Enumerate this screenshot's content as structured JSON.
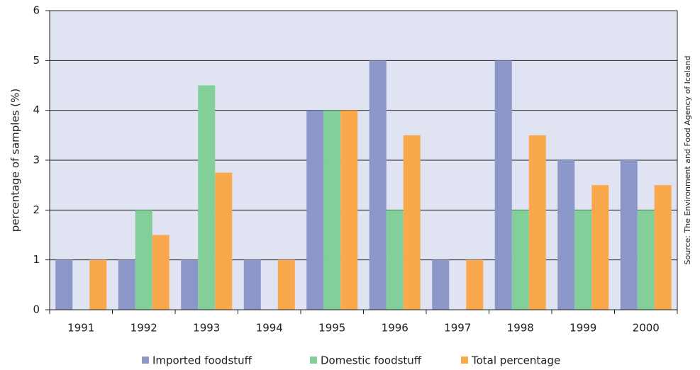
{
  "chart_data": {
    "type": "bar",
    "y_label": "percentage of samples (%)",
    "annotation": "Source: The Environment and Food Agency of Iceland",
    "categories": [
      "1991",
      "1992",
      "1993",
      "1994",
      "1995",
      "1996",
      "1997",
      "1998",
      "1999",
      "2000"
    ],
    "series": [
      {
        "name": "Imported foodstuff",
        "color": "#8b96c9",
        "values": [
          1,
          1,
          1,
          1,
          4,
          5,
          1,
          5,
          3,
          3
        ]
      },
      {
        "name": "Domestic foodstuff",
        "color": "#82cf99",
        "values": [
          0,
          2,
          4.5,
          0,
          4,
          2,
          0,
          2,
          2,
          2
        ]
      },
      {
        "name": "Total percentage",
        "color": "#f9a94b",
        "values": [
          1,
          1.5,
          2.75,
          1,
          4,
          3.5,
          1,
          3.5,
          2.5,
          2.5
        ]
      }
    ],
    "ylim": [
      0,
      6
    ],
    "yticks": [
      0,
      1,
      2,
      3,
      4,
      5,
      6
    ],
    "grid": true,
    "legend": "bottom"
  }
}
